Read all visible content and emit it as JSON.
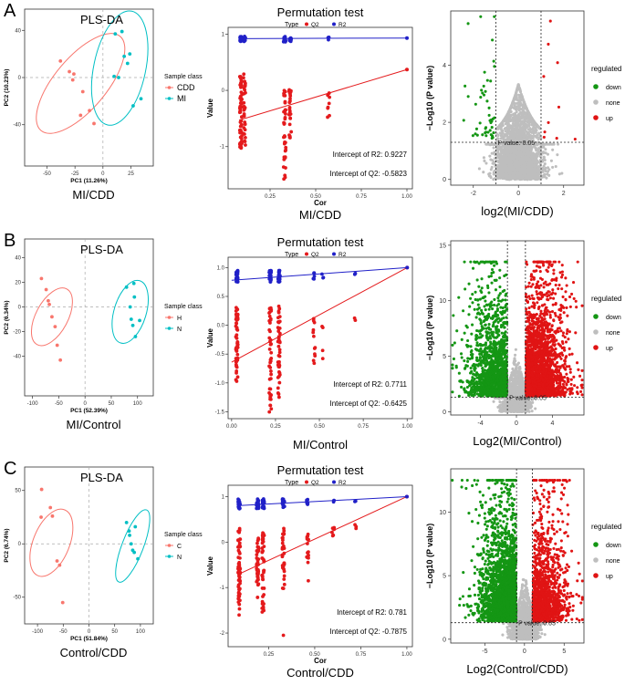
{
  "rows": [
    {
      "letter": "A",
      "pls": {
        "title": "PLS-DA",
        "xlabel": "PC1 (11.26%)",
        "ylabel": "PC2 (10.23%)",
        "caption": "MI/CDD",
        "legend_title": "Sample class",
        "classes": [
          {
            "name": "CDD",
            "color": "#F8766D"
          },
          {
            "name": "MI",
            "color": "#00BFC4"
          }
        ],
        "xlim": [
          -70,
          45
        ],
        "ylim": [
          -75,
          58
        ],
        "xticks": [
          -50,
          -25,
          0,
          25
        ],
        "yticks": [
          -40,
          0,
          40
        ],
        "ellipses": [
          {
            "cx": -20,
            "cy": -5,
            "rx": 55,
            "ry": 22,
            "angle": -50,
            "color": "#F8766D"
          },
          {
            "cx": 15,
            "cy": 8,
            "rx": 52,
            "ry": 22,
            "angle": -78,
            "color": "#00BFC4"
          }
        ],
        "points": [
          {
            "x": -38,
            "y": 14,
            "c": 0
          },
          {
            "x": -30,
            "y": 5,
            "c": 0
          },
          {
            "x": -27,
            "y": -2,
            "c": 0
          },
          {
            "x": -26,
            "y": 3,
            "c": 0
          },
          {
            "x": -18,
            "y": -12,
            "c": 0
          },
          {
            "x": -12,
            "y": -28,
            "c": 0
          },
          {
            "x": -8,
            "y": -39,
            "c": 0
          },
          {
            "x": -20,
            "y": -32,
            "c": 0
          },
          {
            "x": 11,
            "y": 37,
            "c": 1
          },
          {
            "x": 17,
            "y": 39,
            "c": 1
          },
          {
            "x": 19,
            "y": 18,
            "c": 1
          },
          {
            "x": 24,
            "y": 20,
            "c": 1
          },
          {
            "x": 22,
            "y": 12,
            "c": 1
          },
          {
            "x": 14,
            "y": 0,
            "c": 1
          },
          {
            "x": 10,
            "y": 1,
            "c": 1
          },
          {
            "x": 27,
            "y": -24,
            "c": 1
          },
          {
            "x": 34,
            "y": -18,
            "c": 1
          }
        ]
      },
      "perm": {
        "title": "Permutation test",
        "caption": "MI/CDD",
        "xlabel": "Cor",
        "ylabel": "Value",
        "legend": {
          "title": "Type",
          "items": [
            {
              "name": "Q2",
              "color": "#E41A1C"
            },
            {
              "name": "R2",
              "color": "#2020C8"
            }
          ]
        },
        "xlim": [
          0.02,
          1.03
        ],
        "ylim": [
          -1.75,
          1.12
        ],
        "xticks": [
          0.25,
          0.5,
          0.75,
          1.0
        ],
        "xtick_labels": [
          "0.25",
          "0.50",
          "0.75",
          "1.00"
        ],
        "yticks": [
          -1,
          0,
          1
        ],
        "ytick_labels": [
          "-1",
          "0",
          "1"
        ],
        "r2_intercept_text": "Intercept of R2: 0.9227",
        "q2_intercept_text": "Intercept of Q2: -0.5823",
        "r2_line": [
          [
            0.08,
            0.92
          ],
          [
            1.0,
            0.93
          ]
        ],
        "q2_line": [
          [
            0.08,
            -0.53
          ],
          [
            1.0,
            0.37
          ]
        ],
        "columns": [
          {
            "x": 0.09,
            "q2": [
              -1.15,
              0.25
            ],
            "r2": [
              0.86,
              0.96
            ],
            "n": 55
          },
          {
            "x": 0.11,
            "q2": [
              -1.0,
              0.3
            ],
            "r2": [
              0.86,
              0.96
            ],
            "n": 30
          },
          {
            "x": 0.33,
            "q2": [
              -1.6,
              0.12
            ],
            "r2": [
              0.86,
              0.96
            ],
            "n": 40
          },
          {
            "x": 0.36,
            "q2": [
              -0.9,
              0.05
            ],
            "r2": [
              0.87,
              0.95
            ],
            "n": 25
          },
          {
            "x": 0.57,
            "q2": [
              -0.6,
              0.1
            ],
            "r2": [
              0.88,
              0.95
            ],
            "n": 8
          }
        ],
        "end_q2": 0.37,
        "end_r2": 0.93
      },
      "volcano": {
        "caption": "log2(MI/CDD)",
        "ylabel": "−Log10 (P value)",
        "pvalue_label": "P value: 0.05",
        "legend_title": "regulated",
        "legend": [
          {
            "name": "down",
            "color": "#149614"
          },
          {
            "name": "none",
            "color": "#BEBEBE"
          },
          {
            "name": "up",
            "color": "#E01414"
          }
        ],
        "xlim": [
          -3.0,
          2.9
        ],
        "ylim": [
          -0.2,
          5.9
        ],
        "xticks": [
          -2,
          0,
          2
        ],
        "yticks": [
          0,
          2,
          4
        ],
        "fc_threshold": 1.0,
        "p_line": 1.3,
        "n_none": 2600,
        "n_down": 48,
        "n_up": 10,
        "none_sd": 0.55,
        "max_y": 5.8,
        "decay": 0.55,
        "side_spread": 0.7
      }
    },
    {
      "letter": "B",
      "pls": {
        "title": "PLS-DA",
        "xlabel": "PC1 (52.39%)",
        "ylabel": "PC2 (6.34%)",
        "caption": "MI/Control",
        "legend_title": "Sample class",
        "classes": [
          {
            "name": "H",
            "color": "#F8766D"
          },
          {
            "name": "N",
            "color": "#00BFC4"
          }
        ],
        "xlim": [
          -115,
          130
        ],
        "ylim": [
          -72,
          55
        ],
        "xticks": [
          -100,
          -50,
          0,
          50,
          100
        ],
        "yticks": [
          -40,
          -20,
          0,
          20,
          40
        ],
        "ellipses": [
          {
            "cx": -63,
            "cy": -8,
            "rx": 60,
            "ry": 13,
            "angle": -62,
            "color": "#F8766D"
          },
          {
            "cx": 86,
            "cy": -4,
            "rx": 62,
            "ry": 13,
            "angle": -73,
            "color": "#00BFC4"
          }
        ],
        "points": [
          {
            "x": -83,
            "y": 23,
            "c": 0
          },
          {
            "x": -74,
            "y": 14,
            "c": 0
          },
          {
            "x": -70,
            "y": 5,
            "c": 0
          },
          {
            "x": -68,
            "y": 2,
            "c": 0
          },
          {
            "x": -63,
            "y": -8,
            "c": 0
          },
          {
            "x": -57,
            "y": -16,
            "c": 0
          },
          {
            "x": -53,
            "y": -31,
            "c": 0
          },
          {
            "x": -47,
            "y": -43,
            "c": 0
          },
          {
            "x": 79,
            "y": 16,
            "c": 1
          },
          {
            "x": 93,
            "y": 19,
            "c": 1
          },
          {
            "x": 94,
            "y": 8,
            "c": 1
          },
          {
            "x": 86,
            "y": 0,
            "c": 1
          },
          {
            "x": 88,
            "y": -10,
            "c": 1
          },
          {
            "x": 91,
            "y": -15,
            "c": 1
          },
          {
            "x": 96,
            "y": -24,
            "c": 1
          },
          {
            "x": 104,
            "y": -11,
            "c": 1
          }
        ]
      },
      "perm": {
        "title": "Permutation test",
        "caption": "MI/Control",
        "xlabel": "",
        "ylabel": "Value",
        "legend": {
          "title": "Type",
          "items": [
            {
              "name": "Q2",
              "color": "#E41A1C"
            },
            {
              "name": "R2",
              "color": "#2020C8"
            }
          ]
        },
        "xlim": [
          -0.02,
          1.03
        ],
        "ylim": [
          -1.62,
          1.18
        ],
        "xticks": [
          0.0,
          0.25,
          0.5,
          0.75,
          1.0
        ],
        "xtick_labels": [
          "0.00",
          "0.25",
          "0.50",
          "0.75",
          "1.00"
        ],
        "yticks": [
          -1.5,
          -1.0,
          -0.5,
          0.0,
          0.5,
          1.0
        ],
        "ytick_labels": [
          "-1.5",
          "-1.0",
          "-0.5",
          "0.0",
          "0.5",
          "1.0"
        ],
        "r2_intercept_text": "Intercept of R2: 0.7711",
        "q2_intercept_text": "Intercept of Q2: -0.6425",
        "r2_line": [
          [
            0.0,
            0.78
          ],
          [
            1.0,
            1.0
          ]
        ],
        "q2_line": [
          [
            0.0,
            -0.64
          ],
          [
            1.0,
            1.0
          ]
        ],
        "columns": [
          {
            "x": 0.03,
            "q2": [
              -1.05,
              0.32
            ],
            "r2": [
              0.75,
              0.95
            ],
            "n": 60
          },
          {
            "x": 0.22,
            "q2": [
              -1.55,
              0.3
            ],
            "r2": [
              0.75,
              0.95
            ],
            "n": 45
          },
          {
            "x": 0.27,
            "q2": [
              -1.3,
              0.35
            ],
            "r2": [
              0.75,
              0.95
            ],
            "n": 45
          },
          {
            "x": 0.47,
            "q2": [
              -0.8,
              0.2
            ],
            "r2": [
              0.78,
              0.92
            ],
            "n": 12
          },
          {
            "x": 0.52,
            "q2": [
              -0.6,
              0.05
            ],
            "r2": [
              0.82,
              0.9
            ],
            "n": 4
          },
          {
            "x": 0.7,
            "q2": [
              0.08,
              0.15
            ],
            "r2": [
              0.88,
              0.9
            ],
            "n": 2
          }
        ],
        "end_q2": 1.0,
        "end_r2": 1.0
      },
      "volcano": {
        "caption": "Log2(MI/Control)",
        "ylabel": "−Log10 (P value)",
        "pvalue_label": "P value: 0.05",
        "legend_title": "regulated",
        "legend": [
          {
            "name": "down",
            "color": "#149614"
          },
          {
            "name": "none",
            "color": "#BEBEBE"
          },
          {
            "name": "up",
            "color": "#E01414"
          }
        ],
        "xlim": [
          -7.3,
          7.5
        ],
        "ylim": [
          -0.3,
          15.4
        ],
        "xticks": [
          -4,
          0,
          4
        ],
        "yticks": [
          0,
          5,
          10,
          15
        ],
        "fc_threshold": 1.0,
        "p_line": 1.3,
        "n_none": 1700,
        "n_down": 1500,
        "n_up": 2400,
        "none_sd": 0.7,
        "max_y": 13.5,
        "decay": 0.28,
        "side_spread": 2.0
      }
    },
    {
      "letter": "C",
      "pls": {
        "title": "PLS-DA",
        "xlabel": "PC1 (51.84%)",
        "ylabel": "PC2 (6.74%)",
        "caption": "Control/CDD",
        "legend_title": "Sample class",
        "classes": [
          {
            "name": "C",
            "color": "#F8766D"
          },
          {
            "name": "N",
            "color": "#00BFC4"
          }
        ],
        "xlim": [
          -125,
          125
        ],
        "ylim": [
          -75,
          72
        ],
        "xticks": [
          -100,
          -50,
          0,
          50,
          100
        ],
        "yticks": [
          -50,
          0,
          50
        ],
        "ellipses": [
          {
            "cx": -73,
            "cy": 1,
            "rx": 69,
            "ry": 17,
            "angle": -68,
            "color": "#F8766D"
          },
          {
            "cx": 85,
            "cy": -2,
            "rx": 75,
            "ry": 10,
            "angle": -69,
            "color": "#00BFC4"
          }
        ],
        "points": [
          {
            "x": -92,
            "y": 51,
            "c": 0
          },
          {
            "x": -93,
            "y": 25,
            "c": 0
          },
          {
            "x": -75,
            "y": 34,
            "c": 0
          },
          {
            "x": -71,
            "y": 26,
            "c": 0
          },
          {
            "x": -62,
            "y": -16,
            "c": 0
          },
          {
            "x": -57,
            "y": -20,
            "c": 0
          },
          {
            "x": -51,
            "y": -55,
            "c": 0
          },
          {
            "x": 73,
            "y": 20,
            "c": 1
          },
          {
            "x": 78,
            "y": 12,
            "c": 1
          },
          {
            "x": 79,
            "y": 8,
            "c": 1
          },
          {
            "x": 82,
            "y": 0,
            "c": 1
          },
          {
            "x": 85,
            "y": -6,
            "c": 1
          },
          {
            "x": 88,
            "y": -8,
            "c": 1
          },
          {
            "x": 95,
            "y": -14,
            "c": 1
          },
          {
            "x": 90,
            "y": 16,
            "c": 1
          }
        ]
      },
      "perm": {
        "title": "Permutation test",
        "caption": "Control/CDD",
        "xlabel": "Cor",
        "ylabel": "Value",
        "legend": {
          "title": "Type",
          "items": [
            {
              "name": "Q2",
              "color": "#E41A1C"
            },
            {
              "name": "R2",
              "color": "#2020C8"
            }
          ]
        },
        "xlim": [
          0.03,
          1.03
        ],
        "ylim": [
          -2.3,
          1.25
        ],
        "xticks": [
          0.25,
          0.5,
          0.75,
          1.0
        ],
        "xtick_labels": [
          "0.25",
          "0.50",
          "0.75",
          "1.00"
        ],
        "yticks": [
          -2,
          -1,
          0,
          1
        ],
        "ytick_labels": [
          "-2",
          "-1",
          "0",
          "1"
        ],
        "r2_intercept_text": "Intercept of R2: 0.781",
        "q2_intercept_text": "Intercept of Q2: -0.7875",
        "r2_line": [
          [
            0.08,
            0.8
          ],
          [
            1.0,
            1.0
          ]
        ],
        "q2_line": [
          [
            0.08,
            -0.72
          ],
          [
            1.0,
            1.0
          ]
        ],
        "columns": [
          {
            "x": 0.09,
            "q2": [
              -1.65,
              0.3
            ],
            "r2": [
              0.72,
              0.95
            ],
            "n": 60
          },
          {
            "x": 0.19,
            "q2": [
              -1.3,
              0.2
            ],
            "r2": [
              0.74,
              0.95
            ],
            "n": 40
          },
          {
            "x": 0.22,
            "q2": [
              -1.6,
              0.3
            ],
            "r2": [
              0.74,
              0.95
            ],
            "n": 45
          },
          {
            "x": 0.33,
            "q2": [
              -1.1,
              0.3
            ],
            "r2": [
              0.75,
              0.95
            ],
            "n": 35
          },
          {
            "x": 0.46,
            "q2": [
              -0.9,
              0.3
            ],
            "r2": [
              0.8,
              0.95
            ],
            "n": 15
          },
          {
            "x": 0.6,
            "q2": [
              -0.1,
              0.35
            ],
            "r2": [
              0.85,
              0.93
            ],
            "n": 6
          },
          {
            "x": 0.72,
            "q2": [
              0.3,
              0.5
            ],
            "r2": [
              0.88,
              0.92
            ],
            "n": 3
          }
        ],
        "q2_outlier": {
          "x": 0.33,
          "y": -2.05
        },
        "end_q2": 1.0,
        "end_r2": 1.0
      },
      "volcano": {
        "caption": "Log2(Control/CDD)",
        "ylabel": "−Log10 (P value)",
        "pvalue_label": "P value: 0.05",
        "legend_title": "regulated",
        "legend": [
          {
            "name": "down",
            "color": "#149614"
          },
          {
            "name": "none",
            "color": "#BEBEBE"
          },
          {
            "name": "up",
            "color": "#E01414"
          }
        ],
        "xlim": [
          -9.3,
          7.5
        ],
        "ylim": [
          -0.3,
          13.4
        ],
        "xticks": [
          -5,
          0,
          5
        ],
        "yticks": [
          0,
          5,
          10
        ],
        "fc_threshold": 1.0,
        "p_line": 1.3,
        "n_none": 1700,
        "n_down": 2300,
        "n_up": 1300,
        "none_sd": 0.8,
        "max_y": 12.5,
        "decay": 0.3,
        "side_spread": 2.1
      }
    }
  ]
}
